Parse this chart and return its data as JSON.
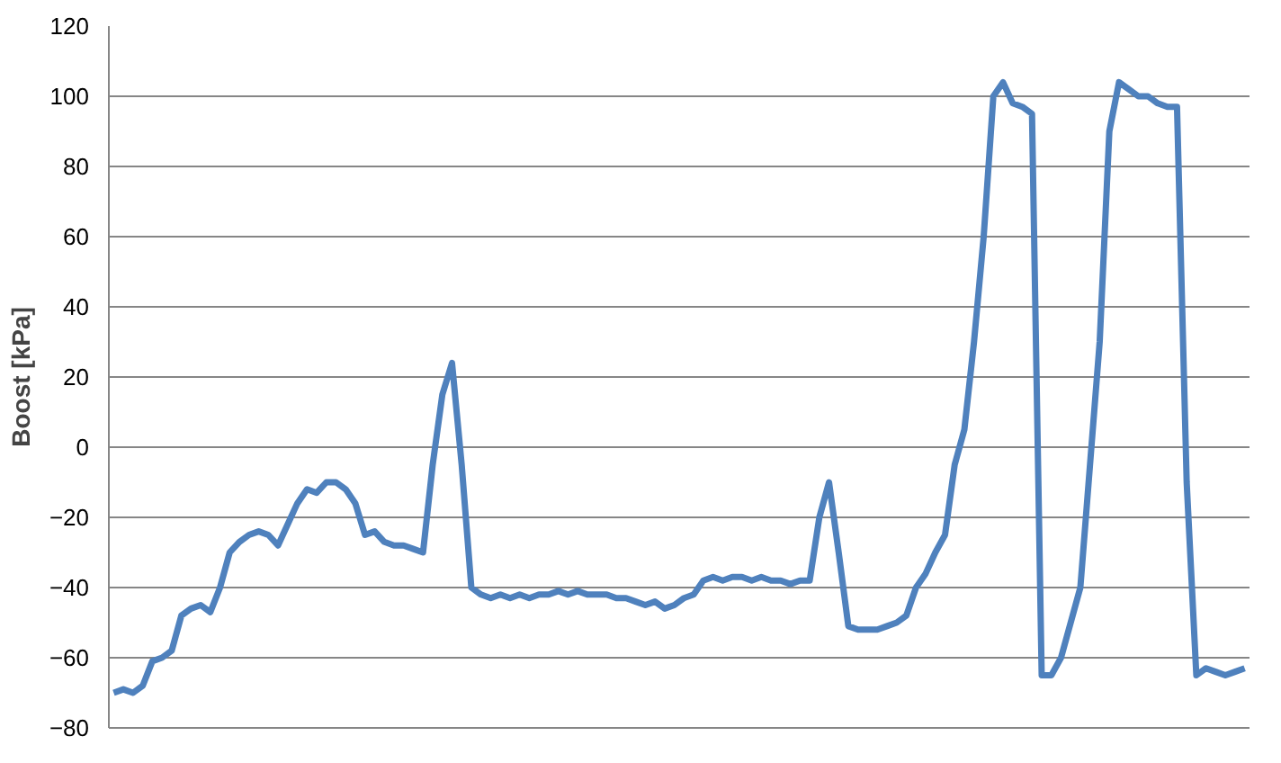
{
  "chart_data": {
    "type": "line",
    "ylabel": "Boost [kPa]",
    "categories": [
      null,
      null,
      null,
      null,
      null,
      null,
      null,
      null,
      null,
      null,
      null,
      null,
      null,
      null,
      null,
      null,
      null,
      null,
      null,
      null,
      null,
      null,
      null,
      null,
      null,
      null,
      null,
      null,
      null,
      null,
      null,
      null,
      null,
      null,
      null,
      null,
      null,
      null,
      null,
      null,
      null,
      null,
      null,
      null,
      null,
      null,
      null,
      null,
      null,
      null,
      null,
      null,
      null,
      null,
      null,
      null,
      null,
      null,
      null,
      null,
      null,
      null,
      null,
      null,
      null,
      null,
      null,
      null,
      null,
      null,
      null,
      null,
      null,
      null,
      null,
      null,
      null,
      null,
      null,
      null,
      null,
      null,
      null,
      null,
      null,
      null,
      null,
      null,
      null,
      null,
      null,
      null,
      null,
      null,
      null,
      null,
      null,
      null,
      null,
      null,
      null,
      null,
      null,
      null,
      null,
      null,
      null,
      null,
      null,
      null,
      null,
      null,
      null,
      null,
      null,
      null,
      null,
      null
    ],
    "series": [
      {
        "color": "#4f81bd",
        "values": [
          -70,
          -69,
          -70,
          -68,
          -61,
          -60,
          -58,
          -48,
          -46,
          -45,
          -47,
          -40,
          -30,
          -27,
          -25,
          -24,
          -25,
          -28,
          -22,
          -16,
          -12,
          -13,
          -10,
          -10,
          -12,
          -16,
          -25,
          -24,
          -27,
          -28,
          -28,
          -29,
          -30,
          -5,
          15,
          24,
          -5,
          -40,
          -42,
          -43,
          -42,
          -43,
          -42,
          -43,
          -42,
          -42,
          -41,
          -42,
          -41,
          -42,
          -42,
          -42,
          -43,
          -43,
          -44,
          -45,
          -44,
          -46,
          -45,
          -43,
          -42,
          -38,
          -37,
          -38,
          -37,
          -37,
          -38,
          -37,
          -38,
          -38,
          -39,
          -38,
          -38,
          -20,
          -10,
          -30,
          -51,
          -52,
          -52,
          -52,
          -51,
          -50,
          -48,
          -40,
          -36,
          -30,
          -25,
          -5,
          5,
          30,
          60,
          100,
          104,
          98,
          97,
          95,
          -65,
          -65,
          -60,
          -50,
          -40,
          -5,
          30,
          90,
          104,
          102,
          100,
          100,
          98,
          97,
          97,
          -10,
          -65,
          -63,
          -64,
          -65,
          -64,
          -63
        ]
      }
    ],
    "ylim": [
      -80,
      120
    ],
    "yticks": [
      -80,
      -60,
      -40,
      -20,
      0,
      20,
      40,
      60,
      80,
      100,
      120
    ],
    "grid": "y",
    "tick_labels": "y",
    "line_style": "solid"
  }
}
